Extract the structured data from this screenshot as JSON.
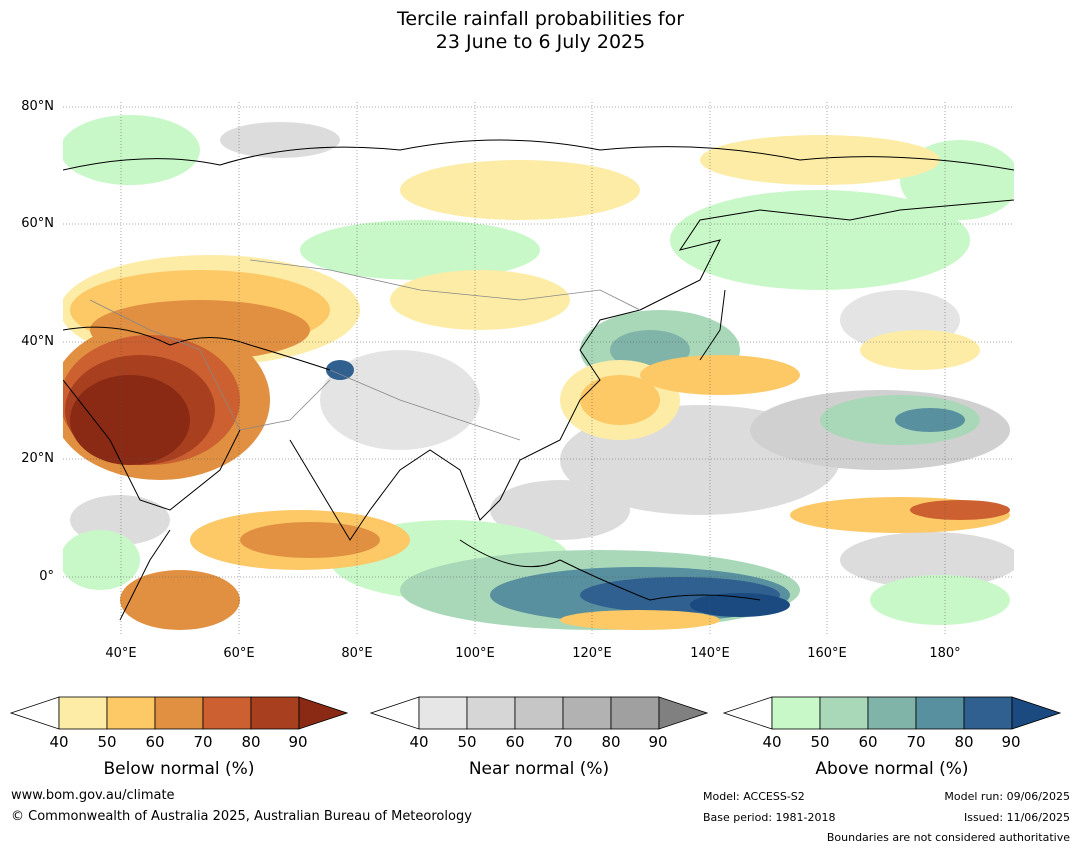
{
  "title": {
    "line1": "Tercile rainfall probabilities for",
    "line2": "23 June to 6 July 2025"
  },
  "map": {
    "lat_labels": [
      "80°N",
      "60°N",
      "40°N",
      "20°N",
      "0°"
    ],
    "lon_labels": [
      "40°E",
      "60°E",
      "80°E",
      "100°E",
      "120°E",
      "140°E",
      "160°E",
      "180°"
    ],
    "extent": {
      "lon_min": 30,
      "lon_max": 192,
      "lat_min": -10,
      "lat_max": 81
    }
  },
  "legends": [
    {
      "label": "Below normal (%)",
      "ticks": [
        "40",
        "50",
        "60",
        "70",
        "80",
        "90"
      ],
      "colors": [
        "#fdeca6",
        "#fdc866",
        "#e09040",
        "#cc6030",
        "#a84020",
        "#8a2a14"
      ]
    },
    {
      "label": "Near normal (%)",
      "ticks": [
        "40",
        "50",
        "60",
        "70",
        "80",
        "90"
      ],
      "colors": [
        "#e6e6e6",
        "#d6d6d6",
        "#c6c6c6",
        "#b2b2b2",
        "#a0a0a0",
        "#808080"
      ]
    },
    {
      "label": "Above normal (%)",
      "ticks": [
        "40",
        "50",
        "60",
        "70",
        "80",
        "90"
      ],
      "colors": [
        "#c8f8c8",
        "#a8d8b8",
        "#80b4a8",
        "#5890a0",
        "#306090",
        "#1a4a80"
      ]
    }
  ],
  "footer": {
    "website": "www.bom.gov.au/climate",
    "copyright": "© Commonwealth of Australia 2025, Australian Bureau of Meteorology",
    "model": "Model: ACCESS-S2",
    "base_period": "Base period: 1981-2018",
    "model_run": "Model run: 09/06/2025",
    "issued": "Issued: 11/06/2025",
    "disclaimer": "Boundaries are not considered authoritative"
  }
}
